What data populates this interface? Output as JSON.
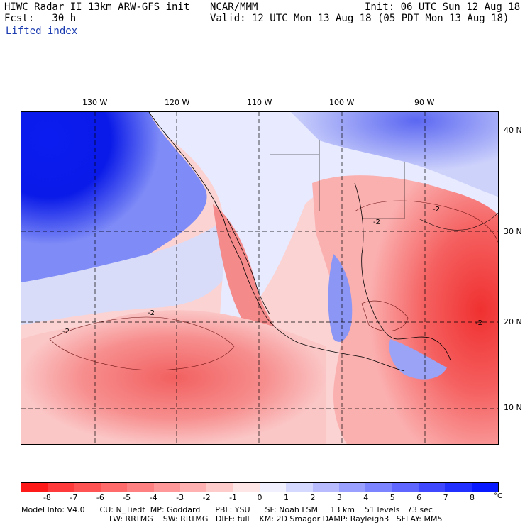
{
  "header": {
    "title": "HIWC Radar II 13km ARW-GFS init",
    "source": "NCAR/MMM",
    "init": "Init: 06 UTC Sun 12 Aug 18",
    "forecast": "Fcst:   30 h",
    "valid": "Valid: 12 UTC Mon 13 Aug 18 (05 PDT Mon 13 Aug 18)",
    "field": "Lifted index"
  },
  "map": {
    "longitude_labels": [
      "130 W",
      "120 W",
      "110 W",
      "100 W",
      "90 W"
    ],
    "latitude_labels": [
      "40 N",
      "30 N",
      "20 N",
      "10 N"
    ],
    "contour_labels": [
      "-2",
      "-2",
      "-2",
      "-2",
      "-2"
    ]
  },
  "colorbar": {
    "ticks": [
      "-8",
      "-7",
      "-6",
      "-5",
      "-4",
      "-3",
      "-2",
      "-1",
      "0",
      "1",
      "2",
      "3",
      "4",
      "5",
      "6",
      "7",
      "8"
    ],
    "unit": "°C",
    "colors": [
      "#ff1a1a",
      "#ff3a3a",
      "#ff5252",
      "#ff6a6a",
      "#ff8080",
      "#ff9898",
      "#ffb0b0",
      "#ffcccc",
      "#ffe6e6",
      "#f0f0ff",
      "#d6d9ff",
      "#b8bcff",
      "#9aa0ff",
      "#7c84ff",
      "#5e66ff",
      "#3f48ff",
      "#2230ff",
      "#0818ff"
    ]
  },
  "footer": {
    "line1": "Model Info: V4.0      CU: N_Tiedt  MP: Goddard      PBL: YSU      SF: Noah LSM     13 km    51 levels   73 sec",
    "line2": "LW: RRTMG    SW: RRTMG   DIFF: full    KM: 2D Smagor DAMP: Rayleigh3   SFLAY: MM5"
  }
}
